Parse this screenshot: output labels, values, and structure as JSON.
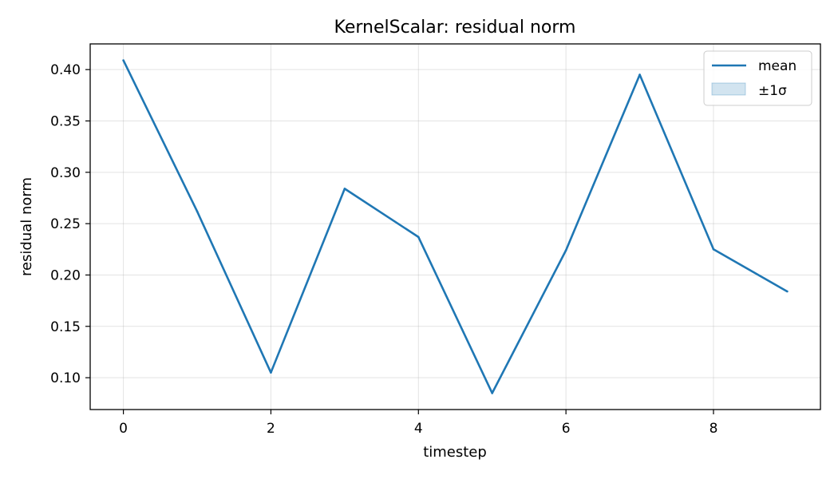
{
  "chart_data": {
    "type": "line",
    "title": "KernelScalar: residual norm",
    "xlabel": "timestep",
    "ylabel": "residual norm",
    "x": [
      0,
      1,
      2,
      3,
      4,
      5,
      6,
      7,
      8,
      9
    ],
    "series": [
      {
        "name": "mean",
        "color": "#1f77b4",
        "values": [
          0.409,
          0.262,
          0.105,
          0.284,
          0.237,
          0.085,
          0.224,
          0.395,
          0.225,
          0.184
        ]
      }
    ],
    "band": {
      "name": "±1σ",
      "color": "#1f77b4"
    },
    "xlim": [
      -0.45,
      9.45
    ],
    "ylim": [
      0.069,
      0.425
    ],
    "xticks": [
      0,
      2,
      4,
      6,
      8
    ],
    "yticks": [
      0.1,
      0.15,
      0.2,
      0.25,
      0.3,
      0.35,
      0.4
    ],
    "ytick_labels": [
      "0.10",
      "0.15",
      "0.20",
      "0.25",
      "0.30",
      "0.35",
      "0.40"
    ],
    "grid": true,
    "legend_position": "upper right"
  }
}
